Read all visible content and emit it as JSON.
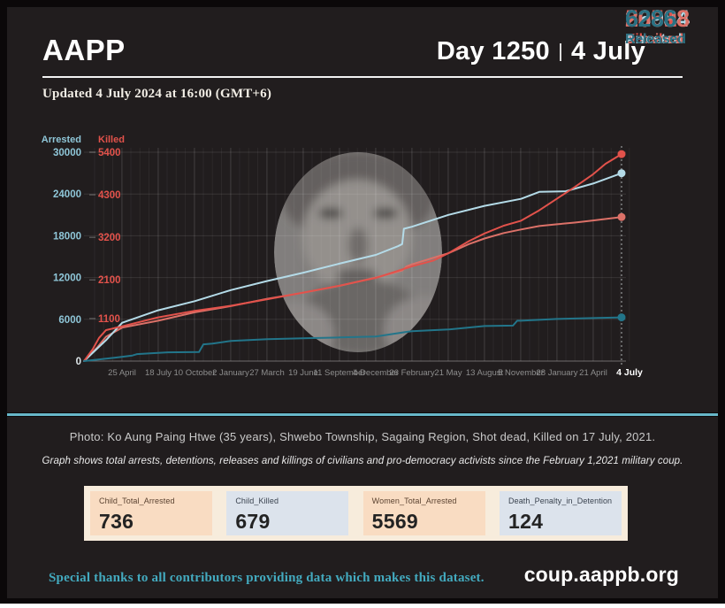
{
  "header": {
    "brand": "AAPP",
    "day_counter": "Day 1250",
    "date": "4 July"
  },
  "updated_line": "Updated 4 July 2024 at 16:00 (GMT+6)",
  "chart_data": {
    "type": "line",
    "title": "",
    "x_tick_labels": [
      "25 April",
      "18 July",
      "10 October",
      "2 January",
      "27 March",
      "19 June",
      "11 September",
      "4 December",
      "26 February",
      "21 May",
      "13 August",
      "5 November",
      "28 January",
      "21 April",
      "4 July"
    ],
    "axes": {
      "arrested": {
        "title": "Arrested",
        "color": "#8fc6d8",
        "max": 30000,
        "ticks": [
          30000,
          24000,
          18000,
          12000,
          6000,
          0
        ]
      },
      "killed": {
        "title": "Killed",
        "color": "#e2524b",
        "max": 5400,
        "ticks": [
          5400,
          4300,
          3200,
          2100,
          1100
        ]
      }
    },
    "series": [
      {
        "name": "Detained",
        "axis": "arrested",
        "color": "#dc7168",
        "end_value": 20698,
        "points": [
          [
            0,
            0
          ],
          [
            0.025,
            2000
          ],
          [
            0.041,
            3500
          ],
          [
            0.071,
            4800
          ],
          [
            0.138,
            5800
          ],
          [
            0.206,
            7000
          ],
          [
            0.273,
            7900
          ],
          [
            0.341,
            8950
          ],
          [
            0.408,
            9830
          ],
          [
            0.475,
            10800
          ],
          [
            0.543,
            12000
          ],
          [
            0.592,
            13000
          ],
          [
            0.6,
            13600
          ],
          [
            0.61,
            13900
          ],
          [
            0.678,
            15500
          ],
          [
            0.716,
            16800
          ],
          [
            0.745,
            17600
          ],
          [
            0.781,
            18400
          ],
          [
            0.813,
            18900
          ],
          [
            0.847,
            19400
          ],
          [
            0.88,
            19650
          ],
          [
            0.913,
            19900
          ],
          [
            0.947,
            20200
          ],
          [
            1,
            20698
          ]
        ]
      },
      {
        "name": "Arrested",
        "axis": "arrested",
        "color": "#b4dbe8",
        "end_value": 26984,
        "points": [
          [
            0,
            0
          ],
          [
            0.041,
            3000
          ],
          [
            0.071,
            5500
          ],
          [
            0.138,
            7300
          ],
          [
            0.206,
            8600
          ],
          [
            0.273,
            10200
          ],
          [
            0.341,
            11500
          ],
          [
            0.408,
            12700
          ],
          [
            0.475,
            14000
          ],
          [
            0.543,
            15250
          ],
          [
            0.584,
            16500
          ],
          [
            0.592,
            16800
          ],
          [
            0.595,
            19000
          ],
          [
            0.61,
            19300
          ],
          [
            0.678,
            21000
          ],
          [
            0.745,
            22300
          ],
          [
            0.813,
            23300
          ],
          [
            0.847,
            24300
          ],
          [
            0.896,
            24400
          ],
          [
            0.947,
            25500
          ],
          [
            1,
            26984
          ]
        ]
      },
      {
        "name": "Killed",
        "axis": "killed",
        "color": "#e2524b",
        "end_value": 5351,
        "points": [
          [
            0,
            0
          ],
          [
            0.016,
            300
          ],
          [
            0.028,
            600
          ],
          [
            0.041,
            800
          ],
          [
            0.071,
            900
          ],
          [
            0.138,
            1130
          ],
          [
            0.206,
            1300
          ],
          [
            0.273,
            1430
          ],
          [
            0.341,
            1600
          ],
          [
            0.408,
            1770
          ],
          [
            0.475,
            1950
          ],
          [
            0.543,
            2150
          ],
          [
            0.61,
            2450
          ],
          [
            0.65,
            2600
          ],
          [
            0.678,
            2790
          ],
          [
            0.716,
            3100
          ],
          [
            0.745,
            3300
          ],
          [
            0.781,
            3500
          ],
          [
            0.813,
            3630
          ],
          [
            0.847,
            3900
          ],
          [
            0.88,
            4200
          ],
          [
            0.913,
            4500
          ],
          [
            0.947,
            4830
          ],
          [
            0.97,
            5100
          ],
          [
            1,
            5351
          ]
        ]
      },
      {
        "name": "Released",
        "axis": "arrested",
        "color": "#22758a",
        "end_value": 6286,
        "points": [
          [
            0,
            0
          ],
          [
            0.058,
            500
          ],
          [
            0.09,
            800
          ],
          [
            0.099,
            1000
          ],
          [
            0.123,
            1100
          ],
          [
            0.156,
            1260
          ],
          [
            0.214,
            1300
          ],
          [
            0.222,
            2400
          ],
          [
            0.239,
            2500
          ],
          [
            0.273,
            2900
          ],
          [
            0.341,
            3150
          ],
          [
            0.408,
            3280
          ],
          [
            0.475,
            3400
          ],
          [
            0.543,
            3530
          ],
          [
            0.6,
            4200
          ],
          [
            0.61,
            4280
          ],
          [
            0.678,
            4540
          ],
          [
            0.745,
            5040
          ],
          [
            0.798,
            5100
          ],
          [
            0.806,
            5800
          ],
          [
            0.813,
            5800
          ],
          [
            0.88,
            6050
          ],
          [
            0.947,
            6180
          ],
          [
            1,
            6286
          ]
        ]
      }
    ],
    "end_labels": [
      {
        "value": "5351",
        "label": "Killed",
        "color": "#e2524b"
      },
      {
        "value": "26984",
        "label": "Arrested",
        "color": "#b4dbe8"
      },
      {
        "value": "20698",
        "label": "Detained",
        "color": "#dc7168"
      },
      {
        "value": "6286",
        "label": "Released",
        "color": "#2a7183"
      }
    ]
  },
  "photo_caption": "Photo: Ko Aung Paing Htwe (35 years), Shwebo Township, Sagaing Region, Shot dead, Killed on 17 July, 2021.",
  "graph_note": "Graph shows total arrests, detentions, releases and killings of civilians and pro-democracy activists since the February 1,2021 military coup.",
  "stats": [
    {
      "label": "Child_Total_Arrested",
      "value": "736"
    },
    {
      "label": "Child_Killed",
      "value": "679"
    },
    {
      "label": "Women_Total_Arrested",
      "value": "5569"
    },
    {
      "label": "Death_Penalty_in_Detention",
      "value": "124"
    }
  ],
  "footer": {
    "thanks": "Special thanks to all contributors providing data which makes this dataset.",
    "site": "coup.aappb.org"
  },
  "colors": {
    "frame": "#0b0809",
    "panel": "#211d1e",
    "divider": "#67b7c9",
    "thanks_text": "#43aabf",
    "stat_strip": "#f7ecdc",
    "stat_peach": "#f9dcc2",
    "stat_blue": "#dce3ec"
  }
}
